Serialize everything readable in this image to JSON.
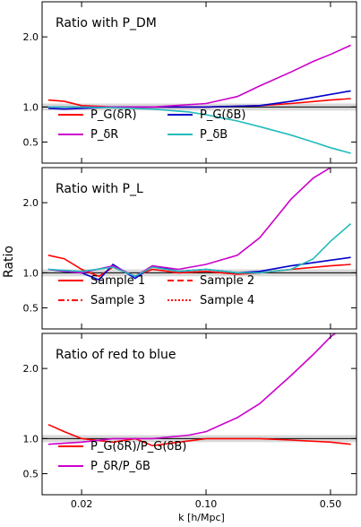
{
  "figure": {
    "ylabel": "Ratio",
    "xlabel": "k [h/Mpc]",
    "xticks": [
      {
        "value": 0.02,
        "label": "0.02"
      },
      {
        "value": 0.1,
        "label": "0.10"
      },
      {
        "value": 0.5,
        "label": "0.50"
      }
    ],
    "xlim": [
      0.012,
      0.7
    ]
  },
  "chart_data": [
    {
      "type": "line",
      "title": "Ratio with P_DM",
      "ylim": [
        0.2,
        2.5
      ],
      "yticks": [
        {
          "value": 0.5,
          "label": "0.5"
        },
        {
          "value": 1.0,
          "label": "1.0"
        },
        {
          "value": 2.0,
          "label": "2.0"
        }
      ],
      "legend": [
        {
          "label": "P_G(δR)",
          "color": "#ff0000"
        },
        {
          "label": "P_G(δB)",
          "color": "#0000cc"
        },
        {
          "label": "P_δR",
          "color": "#cc00cc"
        },
        {
          "label": "P_δB",
          "color": "#22bbbb"
        }
      ],
      "series": [
        {
          "name": "P_G(δR)",
          "color": "#ff0000",
          "x": [
            0.013,
            0.016,
            0.02,
            0.03,
            0.05,
            0.1,
            0.2,
            0.3,
            0.5,
            0.65
          ],
          "y": [
            1.1,
            1.08,
            1.02,
            1.0,
            1.0,
            1.0,
            1.02,
            1.05,
            1.1,
            1.12
          ]
        },
        {
          "name": "P_G(δB)",
          "color": "#0000cc",
          "x": [
            0.013,
            0.016,
            0.02,
            0.03,
            0.05,
            0.1,
            0.2,
            0.3,
            0.5,
            0.65
          ],
          "y": [
            0.98,
            0.97,
            0.98,
            1.0,
            1.0,
            1.0,
            1.02,
            1.08,
            1.18,
            1.23
          ]
        },
        {
          "name": "P_δR",
          "color": "#cc00cc",
          "x": [
            0.013,
            0.02,
            0.03,
            0.05,
            0.1,
            0.15,
            0.2,
            0.3,
            0.4,
            0.5,
            0.65
          ],
          "y": [
            1.0,
            1.0,
            1.0,
            1.0,
            1.05,
            1.15,
            1.3,
            1.5,
            1.65,
            1.75,
            1.88
          ]
        },
        {
          "name": "P_δB",
          "color": "#22bbbb",
          "x": [
            0.013,
            0.02,
            0.03,
            0.05,
            0.08,
            0.1,
            0.15,
            0.2,
            0.3,
            0.4,
            0.5,
            0.65
          ],
          "y": [
            1.0,
            1.0,
            0.99,
            0.97,
            0.93,
            0.89,
            0.8,
            0.72,
            0.6,
            0.5,
            0.42,
            0.34
          ]
        }
      ]
    },
    {
      "type": "line",
      "title": "Ratio with P_L",
      "ylim": [
        0.2,
        2.5
      ],
      "yticks": [
        {
          "value": 0.5,
          "label": "0.5"
        },
        {
          "value": 1.0,
          "label": "1.0"
        },
        {
          "value": 2.0,
          "label": "2.0"
        }
      ],
      "legend": [
        {
          "label": "Sample 1",
          "dash": "solid"
        },
        {
          "label": "Sample 2",
          "dash": "dashed"
        },
        {
          "label": "Sample 3",
          "dash": "dashdot"
        },
        {
          "label": "Sample 4",
          "dash": "dotted"
        }
      ],
      "series": [
        {
          "name": "P_G(δR)",
          "color": "#ff0000",
          "x": [
            0.013,
            0.016,
            0.02,
            0.025,
            0.03,
            0.04,
            0.05,
            0.07,
            0.1,
            0.15,
            0.2,
            0.3,
            0.5,
            0.65
          ],
          "y": [
            1.25,
            1.2,
            1.05,
            0.95,
            1.08,
            0.95,
            1.05,
            1.0,
            1.02,
            0.98,
            1.0,
            1.05,
            1.1,
            1.12
          ]
        },
        {
          "name": "P_G(δB)",
          "color": "#0000cc",
          "x": [
            0.013,
            0.016,
            0.02,
            0.025,
            0.03,
            0.04,
            0.05,
            0.07,
            0.1,
            0.15,
            0.2,
            0.3,
            0.5,
            0.65
          ],
          "y": [
            1.05,
            1.02,
            1.0,
            0.9,
            1.12,
            0.92,
            1.1,
            1.02,
            1.05,
            1.0,
            1.02,
            1.1,
            1.18,
            1.22
          ]
        },
        {
          "name": "P_δR",
          "color": "#cc00cc",
          "x": [
            0.013,
            0.02,
            0.03,
            0.04,
            0.05,
            0.07,
            0.1,
            0.15,
            0.2,
            0.25,
            0.3,
            0.4,
            0.5
          ],
          "y": [
            1.05,
            1.0,
            1.1,
            0.95,
            1.1,
            1.05,
            1.12,
            1.25,
            1.5,
            1.8,
            2.05,
            2.35,
            2.5
          ]
        },
        {
          "name": "P_δB",
          "color": "#22bbbb",
          "x": [
            0.013,
            0.02,
            0.03,
            0.04,
            0.05,
            0.07,
            0.1,
            0.15,
            0.2,
            0.3,
            0.4,
            0.5,
            0.65
          ],
          "y": [
            1.05,
            1.02,
            1.08,
            0.95,
            1.08,
            1.02,
            1.05,
            1.0,
            1.0,
            1.05,
            1.2,
            1.45,
            1.7
          ]
        }
      ]
    },
    {
      "type": "line",
      "title": "Ratio of red to blue",
      "ylim": [
        0.2,
        2.5
      ],
      "yticks": [
        {
          "value": 0.5,
          "label": "0.5"
        },
        {
          "value": 1.0,
          "label": "1.0"
        },
        {
          "value": 2.0,
          "label": "2.0"
        }
      ],
      "legend": [
        {
          "label": "P_G(δR)/P_G(δB)",
          "color": "#ff0000"
        },
        {
          "label": "P_δR/P_δB",
          "color": "#cc00cc"
        }
      ],
      "series": [
        {
          "name": "P_G(δR)/P_G(δB)",
          "color": "#ff0000",
          "x": [
            0.013,
            0.016,
            0.02,
            0.03,
            0.04,
            0.05,
            0.1,
            0.2,
            0.3,
            0.5,
            0.65
          ],
          "y": [
            1.2,
            1.1,
            1.0,
            0.95,
            1.0,
            0.9,
            1.0,
            1.0,
            0.98,
            0.95,
            0.92
          ]
        },
        {
          "name": "P_δR/P_δB",
          "color": "#cc00cc",
          "x": [
            0.013,
            0.02,
            0.03,
            0.05,
            0.08,
            0.1,
            0.15,
            0.2,
            0.3,
            0.4,
            0.5,
            0.6
          ],
          "y": [
            0.92,
            0.95,
            1.0,
            1.0,
            1.05,
            1.1,
            1.3,
            1.5,
            1.9,
            2.2,
            2.45,
            2.6
          ]
        }
      ]
    }
  ]
}
